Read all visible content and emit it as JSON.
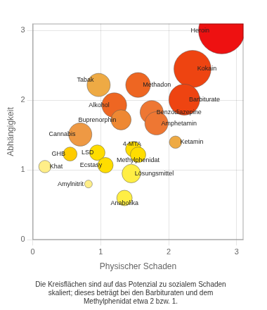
{
  "chart_data": {
    "type": "bubble",
    "xlabel": "Physischer Schaden",
    "ylabel": "Abhängigkeit",
    "caption": "Die Kreisflächen sind auf das Potenzial zu sozialem Schaden\nskaliert; dieses beträgt bei den Barbituraten und dem\nMethylphenidat etwa 2 bzw. 1.",
    "point_labels": [
      "Heroin",
      "Kokain",
      "Barbiturate",
      "Methadon",
      "Alkohol",
      "Benzodiazepine",
      "Buprenorphin",
      "Amphetamin",
      "Cannabis",
      "Ketamin",
      "Tabak",
      "GHB",
      "LSD",
      "4-MTA",
      "Methylphenidat",
      "Ecstasy",
      "Khat",
      "Lösungsmittel",
      "Amylnitrit",
      "Anabolika"
    ],
    "x": [
      2.78,
      2.35,
      2.23,
      1.55,
      1.2,
      1.75,
      1.3,
      1.82,
      0.7,
      2.1,
      0.97,
      0.55,
      0.95,
      1.48,
      1.55,
      1.07,
      0.18,
      1.45,
      0.82,
      1.35
    ],
    "values": [
      3.0,
      2.45,
      2.01,
      2.22,
      1.93,
      1.83,
      1.72,
      1.67,
      1.51,
      1.4,
      2.22,
      1.23,
      1.25,
      1.3,
      1.22,
      1.07,
      1.05,
      0.95,
      0.8,
      0.6
    ],
    "sizes": [
      3.0,
      2.4,
      2.0,
      1.6,
      1.6,
      1.5,
      1.3,
      1.5,
      1.5,
      0.8,
      1.5,
      0.9,
      1.0,
      1.0,
      1.0,
      1.0,
      0.8,
      1.2,
      0.5,
      1.0
    ],
    "colors": [
      "#ee1111",
      "#ee4411",
      "#ee4411",
      "#ee6622",
      "#ee6622",
      "#ee7733",
      "#ee8833",
      "#ee7733",
      "#ee9944",
      "#eeaa44",
      "#eeaa44",
      "#ffcc00",
      "#ffdd00",
      "#ffdd00",
      "#ffdd00",
      "#ffdd00",
      "#ffee88",
      "#ffee44",
      "#ffee88",
      "#ffee44"
    ],
    "xlim": [
      0,
      3.1
    ],
    "ylim": [
      0,
      3.1
    ],
    "xticks": [
      0,
      1,
      2,
      3
    ],
    "yticks": [
      0,
      1,
      2,
      3
    ],
    "grid": true
  }
}
